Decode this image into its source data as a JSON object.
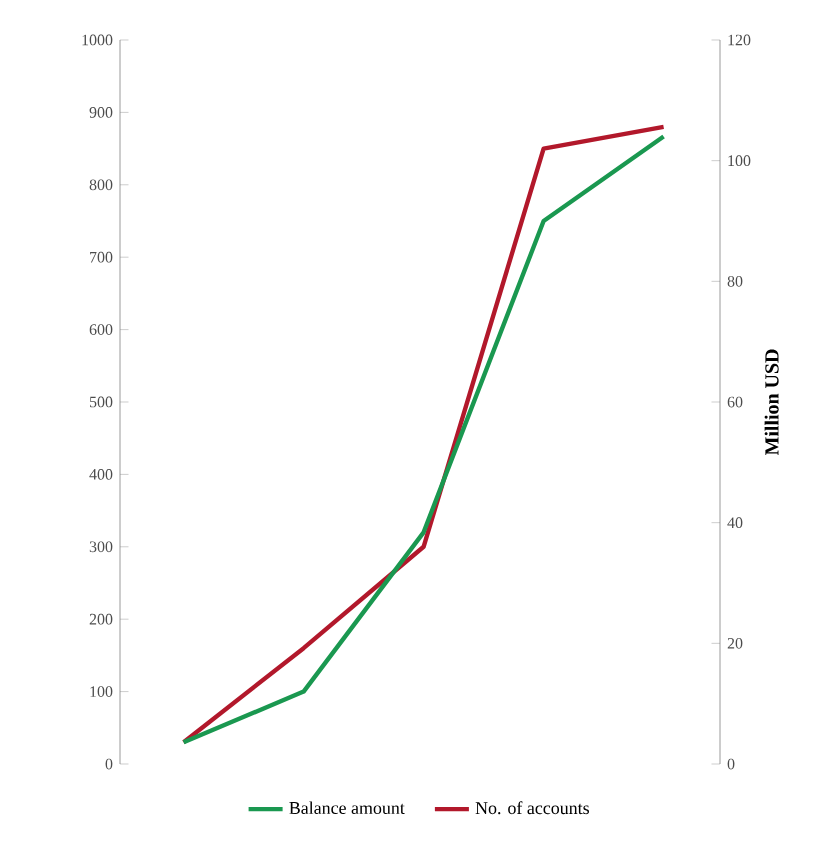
{
  "chart_data": {
    "type": "line",
    "categories": [
      null,
      null,
      null,
      null,
      null
    ],
    "series": [
      {
        "name": "Balance amount",
        "color": "#1a9850",
        "axis": "y2",
        "values": [
          3.6,
          12,
          38.4,
          90,
          104
        ]
      },
      {
        "name": "No. of accounts",
        "color": "#b2182b",
        "values": [
          30,
          160,
          300,
          850,
          880
        ]
      }
    ],
    "y2label": "Million USD",
    "ylim": [
      0,
      1000
    ],
    "yticks": [
      0,
      100,
      200,
      300,
      400,
      500,
      600,
      700,
      800,
      900,
      1000
    ],
    "y2lim": [
      0,
      120
    ],
    "y2ticks": [
      0,
      20,
      40,
      60,
      80,
      100,
      120
    ],
    "legend": "bottom",
    "grid": false,
    "marker": "none",
    "line_style": "solid"
  }
}
